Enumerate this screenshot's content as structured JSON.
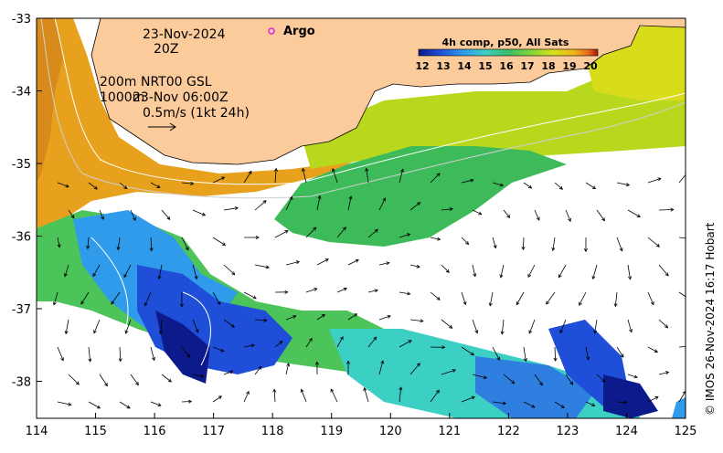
{
  "map": {
    "date_line": "23-Nov-2024",
    "time_line": "20Z",
    "depth_shallow": "200m",
    "product": "NRT00 GSL",
    "depth_deep": "1000m",
    "analysis_time": "23-Nov 06:00Z",
    "scale_label": "0.5m/s (1kt 24h)",
    "argo_label": "Argo",
    "credit": "© IMOS 26-Nov-2024 16:17 Hobart"
  },
  "legend": {
    "title": "4h comp, p50, All Sats",
    "ticks": [
      "12",
      "13",
      "14",
      "15",
      "16",
      "17",
      "18",
      "19",
      "20"
    ],
    "colors": [
      "#0d1a8c",
      "#1f4ed8",
      "#2f9bea",
      "#3ccfc4",
      "#3bbf6a",
      "#7fd43a",
      "#d6e21a",
      "#f0b41a",
      "#e8621c",
      "#a01a0e"
    ]
  },
  "axes": {
    "x_ticks": [
      "114",
      "115",
      "116",
      "117",
      "118",
      "119",
      "120",
      "121",
      "122",
      "123",
      "124",
      "125"
    ],
    "y_ticks": [
      "-33",
      "-34",
      "-35",
      "-36",
      "-37",
      "-38"
    ]
  },
  "colors": {
    "land": "#fccb9c",
    "argo_marker": "#e020e0",
    "frame": "#000000"
  }
}
